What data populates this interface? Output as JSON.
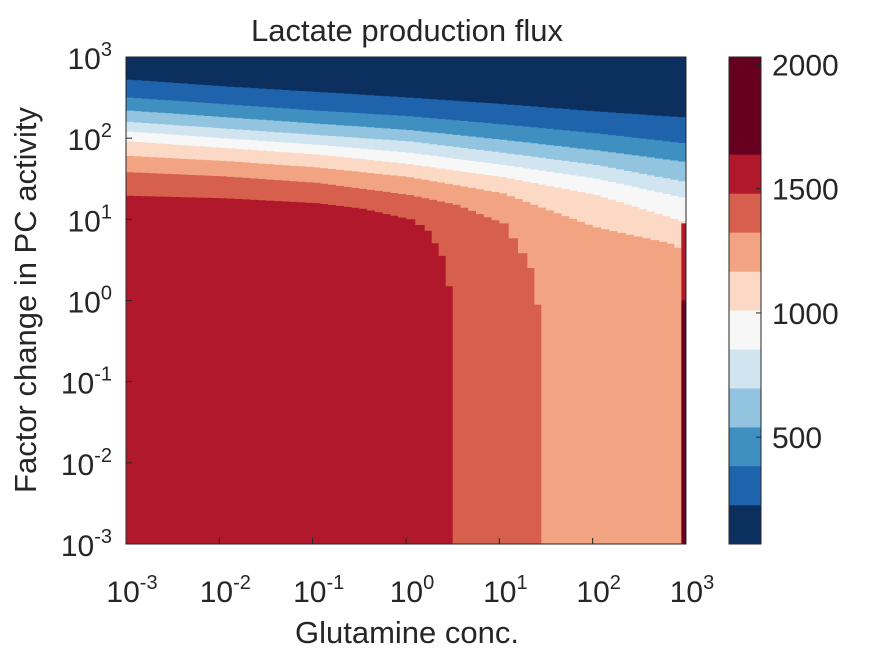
{
  "chart_data": {
    "type": "heatmap",
    "title": "Lactate production flux",
    "xlabel": "Glutamine conc.",
    "ylabel": "Factor change in PC activity",
    "x_scale": "log",
    "y_scale": "log",
    "x_range": [
      0.001,
      1000
    ],
    "y_range": [
      0.001,
      1000
    ],
    "x_ticks": [
      "10^-3",
      "10^-2",
      "10^-1",
      "10^0",
      "10^1",
      "10^2",
      "10^3"
    ],
    "y_ticks": [
      "10^-3",
      "10^-2",
      "10^-1",
      "10^0",
      "10^1",
      "10^2",
      "10^3"
    ],
    "colorbar": {
      "range": [
        70,
        2030
      ],
      "ticks": [
        500,
        1000,
        1500,
        2000
      ],
      "tick_labels": [
        "500",
        "1000",
        "1500",
        "2000"
      ],
      "levels": [
        {
          "color": "#0b305f",
          "from": 70,
          "to": 228
        },
        {
          "color": "#1f63ad",
          "from": 228,
          "to": 385
        },
        {
          "color": "#3f8fc1",
          "from": 385,
          "to": 541
        },
        {
          "color": "#92c3df",
          "from": 541,
          "to": 698
        },
        {
          "color": "#d1e5f1",
          "from": 698,
          "to": 855
        },
        {
          "color": "#f7f7f7",
          "from": 855,
          "to": 1012
        },
        {
          "color": "#fcd9c4",
          "from": 1012,
          "to": 1168
        },
        {
          "color": "#f2a382",
          "from": 1168,
          "to": 1325
        },
        {
          "color": "#d6604d",
          "from": 1325,
          "to": 1482
        },
        {
          "color": "#b2182b",
          "from": 1482,
          "to": 1639
        },
        {
          "color": "#67001f",
          "from": 1639,
          "to": 2030
        }
      ]
    },
    "contour_boundaries": [
      {
        "level": 1482,
        "color": "#b2182b",
        "points": [
          [
            -3,
            1.29
          ],
          [
            -2,
            1.26
          ],
          [
            -1,
            1.2
          ],
          [
            -0.5,
            1.13
          ],
          [
            0,
            1.0
          ],
          [
            0.2,
            0.86
          ],
          [
            0.35,
            0.55
          ],
          [
            0.5,
            -0.2
          ],
          [
            0.5,
            -3
          ]
        ]
      },
      {
        "level": 1325,
        "color": "#d6604d",
        "points": [
          [
            -3,
            1.58
          ],
          [
            -2,
            1.53
          ],
          [
            -1,
            1.45
          ],
          [
            0,
            1.3
          ],
          [
            0.5,
            1.18
          ],
          [
            1,
            0.95
          ],
          [
            1.3,
            0.4
          ],
          [
            1.45,
            -0.5
          ],
          [
            1.45,
            -3
          ]
        ]
      },
      {
        "level": 1168,
        "color": "#f2a382",
        "points": [
          [
            -3,
            1.78
          ],
          [
            -2,
            1.72
          ],
          [
            -1,
            1.64
          ],
          [
            0,
            1.52
          ],
          [
            1,
            1.32
          ],
          [
            2,
            0.9
          ],
          [
            2.8,
            0.7
          ],
          [
            2.95,
            0.6
          ],
          [
            2.95,
            -3
          ]
        ]
      },
      {
        "level": 1012,
        "color": "#fcd9c4",
        "points": [
          [
            -3,
            1.96
          ],
          [
            -2,
            1.88
          ],
          [
            -1,
            1.8
          ],
          [
            0,
            1.68
          ],
          [
            1,
            1.52
          ],
          [
            2,
            1.3
          ],
          [
            3,
            0.95
          ]
        ]
      },
      {
        "level": 855,
        "color": "#f7f7f7",
        "points": [
          [
            -3,
            2.08
          ],
          [
            -2,
            2.0
          ],
          [
            -1,
            1.92
          ],
          [
            0,
            1.82
          ],
          [
            1,
            1.67
          ],
          [
            2,
            1.5
          ],
          [
            3,
            1.25
          ]
        ]
      },
      {
        "level": 698,
        "color": "#d1e5f1",
        "points": [
          [
            -3,
            2.2
          ],
          [
            -2,
            2.12
          ],
          [
            -1,
            2.04
          ],
          [
            0,
            1.96
          ],
          [
            1,
            1.82
          ],
          [
            2,
            1.67
          ],
          [
            3,
            1.45
          ]
        ]
      },
      {
        "level": 541,
        "color": "#92c3df",
        "points": [
          [
            -3,
            2.34
          ],
          [
            -2,
            2.26
          ],
          [
            -1,
            2.18
          ],
          [
            0,
            2.1
          ],
          [
            1,
            1.98
          ],
          [
            2,
            1.85
          ],
          [
            3,
            1.7
          ]
        ]
      },
      {
        "level": 385,
        "color": "#3f8fc1",
        "points": [
          [
            -3,
            2.5
          ],
          [
            -2,
            2.42
          ],
          [
            -1,
            2.34
          ],
          [
            0,
            2.27
          ],
          [
            1,
            2.17
          ],
          [
            2,
            2.06
          ],
          [
            3,
            1.93
          ]
        ]
      },
      {
        "level": 228,
        "color": "#1f63ad",
        "points": [
          [
            -3,
            2.72
          ],
          [
            -2,
            2.64
          ],
          [
            -1,
            2.57
          ],
          [
            0,
            2.5
          ],
          [
            1,
            2.42
          ],
          [
            2,
            2.33
          ],
          [
            3,
            2.25
          ]
        ]
      }
    ],
    "high_edge_strip": {
      "x_from": 2.95,
      "x_to": 3.0,
      "y_from": -3,
      "y_to": 0.95,
      "color": "#67001f",
      "upper_color": "#b2182b",
      "upper_y_from": 0.0,
      "upper_y_to": 0.95
    }
  }
}
